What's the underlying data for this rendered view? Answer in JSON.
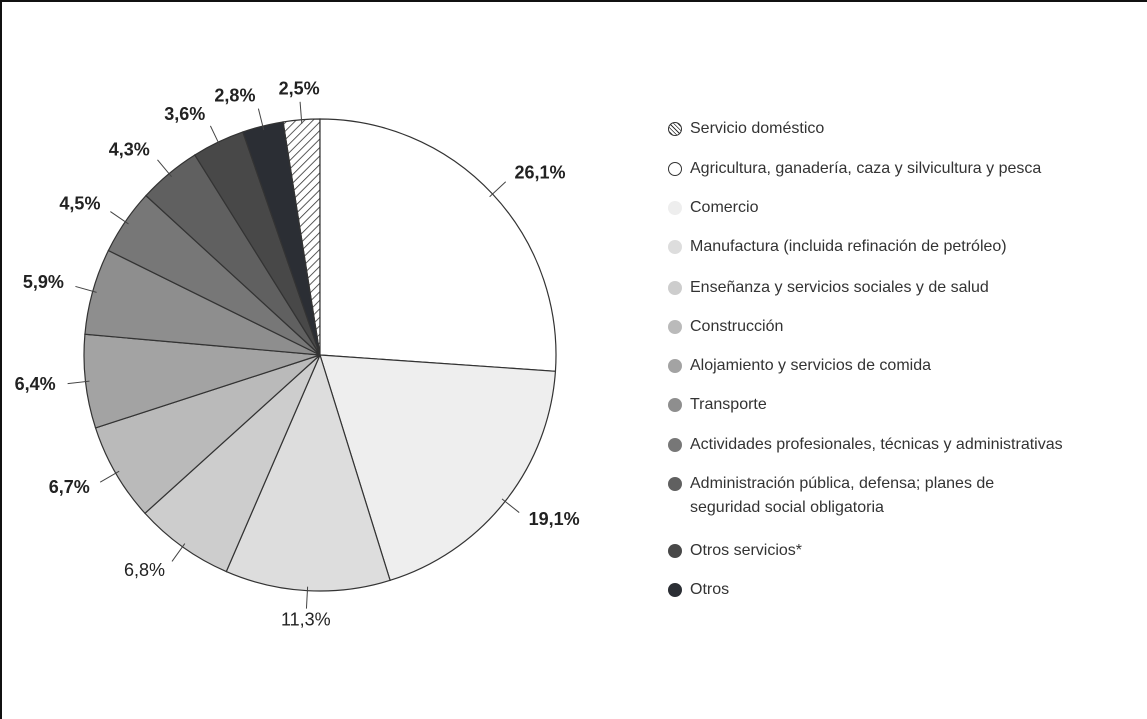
{
  "chart_data": {
    "type": "pie",
    "categories": [
      "Servicio doméstico",
      "Agricultura, ganadería, caza y silvicultura y pesca",
      "Comercio",
      "Manufactura (incluida refinación de petróleo)",
      "Enseñanza y servicios sociales y de salud",
      "Construcción",
      "Alojamiento y servicios de comida",
      "Transporte",
      "Actividades profesionales, técnicas y administrativas",
      "Administración pública, defensa; planes de seguridad social obligatoria",
      "Otros servicios*",
      "Otros"
    ],
    "values": [
      2.5,
      26.1,
      19.1,
      11.3,
      6.8,
      6.7,
      6.4,
      5.9,
      4.5,
      4.3,
      3.6,
      2.8
    ],
    "value_labels": [
      "2,5%",
      "26,1%",
      "19,1%",
      "11,3%",
      "6,8%",
      "6,7%",
      "6,4%",
      "5,9%",
      "4,5%",
      "4,3%",
      "3,6%",
      "2,8%"
    ],
    "colors": [
      "#ffffff",
      "#ffffff",
      "#eeeeee",
      "#dddddd",
      "#cdcdcd",
      "#bababa",
      "#a3a3a3",
      "#8e8e8e",
      "#777777",
      "#606060",
      "#484848",
      "#2b2e34"
    ],
    "legend": "right"
  }
}
